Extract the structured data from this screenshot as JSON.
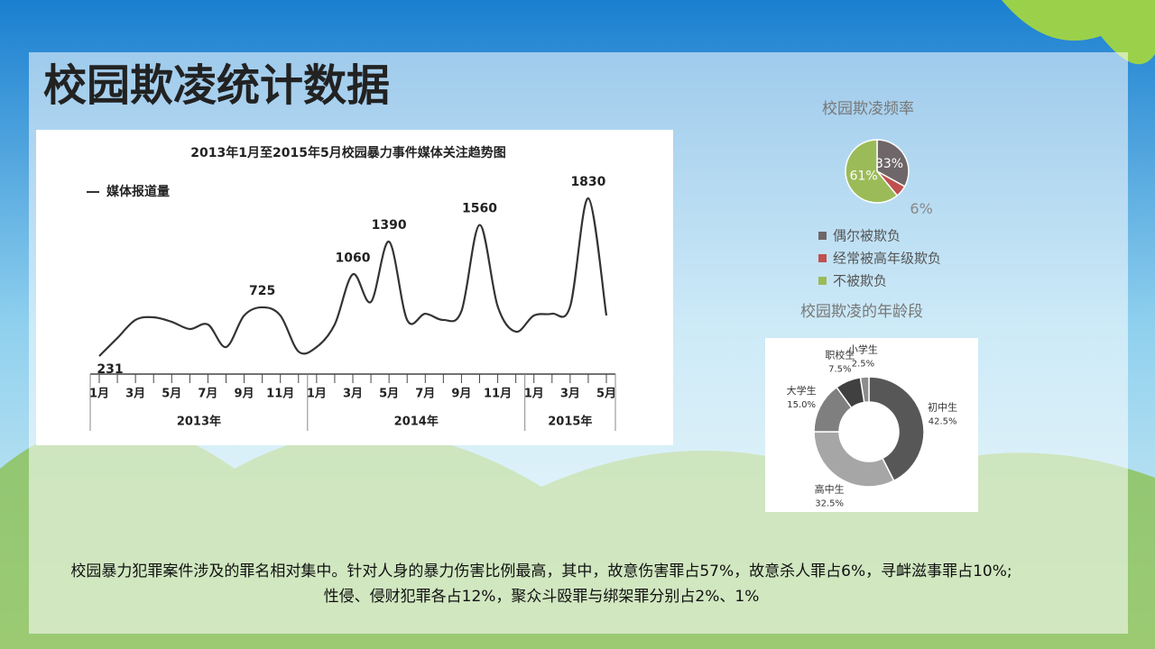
{
  "slide": {
    "title": "校园欺凌统计数据",
    "body": "校园暴力犯罪案件涉及的罪名相对集中。针对人身的暴力伤害比例最高，其中，故意伤害罪占57%，故意杀人罪占6%，寻衅滋事罪占10%;性侵、侵财犯罪各占12%，聚众斗殴罪与绑架罪分别占2%、1%"
  },
  "chart_data": [
    {
      "type": "line",
      "title": "2013年1月至2015年5月校园暴力事件媒体关注趋势图",
      "legend": "媒体报道量",
      "color": "#333333",
      "groups": [
        {
          "label": "2013年",
          "categories": [
            "1月",
            null,
            "3月",
            null,
            "5月",
            null,
            "7月",
            null,
            "9月",
            null,
            "11月",
            null
          ]
        },
        {
          "label": "2014年",
          "categories": [
            "1月",
            null,
            "3月",
            null,
            "5月",
            null,
            "7月",
            null,
            "9月",
            null,
            "11月",
            null
          ]
        },
        {
          "label": "2015年",
          "categories": [
            "1月",
            null,
            "3月",
            null,
            "5月"
          ]
        }
      ],
      "values": [
        231,
        414,
        597,
        624,
        578,
        505,
        551,
        322,
        642,
        725,
        642,
        277,
        322,
        551,
        1060,
        780,
        1390,
        597,
        660,
        597,
        688,
        1560,
        734,
        478,
        642,
        660,
        734,
        1830,
        642
      ],
      "value_labels": [
        "231",
        null,
        null,
        null,
        null,
        null,
        null,
        null,
        null,
        "725",
        null,
        null,
        null,
        null,
        "1060",
        null,
        "1390",
        null,
        null,
        null,
        null,
        "1560",
        null,
        null,
        null,
        null,
        null,
        "1830",
        null
      ]
    },
    {
      "type": "pie",
      "title": "校园欺凌频率",
      "categories": [
        "偶尔被欺负",
        "经常被高年级欺负",
        "不被欺负"
      ],
      "values": [
        33,
        6,
        61
      ],
      "value_labels": [
        "33%",
        "6%",
        "61%"
      ],
      "colors": [
        "#6e6668",
        "#c0504d",
        "#9bbb59"
      ]
    },
    {
      "type": "donut",
      "title": "校园欺凌的年龄段",
      "categories": [
        "初中生",
        "高中生",
        "大学生",
        "职校生",
        "小学生"
      ],
      "values": [
        42.5,
        32.5,
        15.0,
        7.5,
        2.5
      ],
      "value_labels": [
        "42.5%",
        "32.5%",
        "15.0%",
        "7.5%",
        "2.5%"
      ],
      "colors": [
        "#575757",
        "#a6a6a6",
        "#7f7f7f",
        "#404040",
        "#8c8c8c"
      ]
    }
  ]
}
